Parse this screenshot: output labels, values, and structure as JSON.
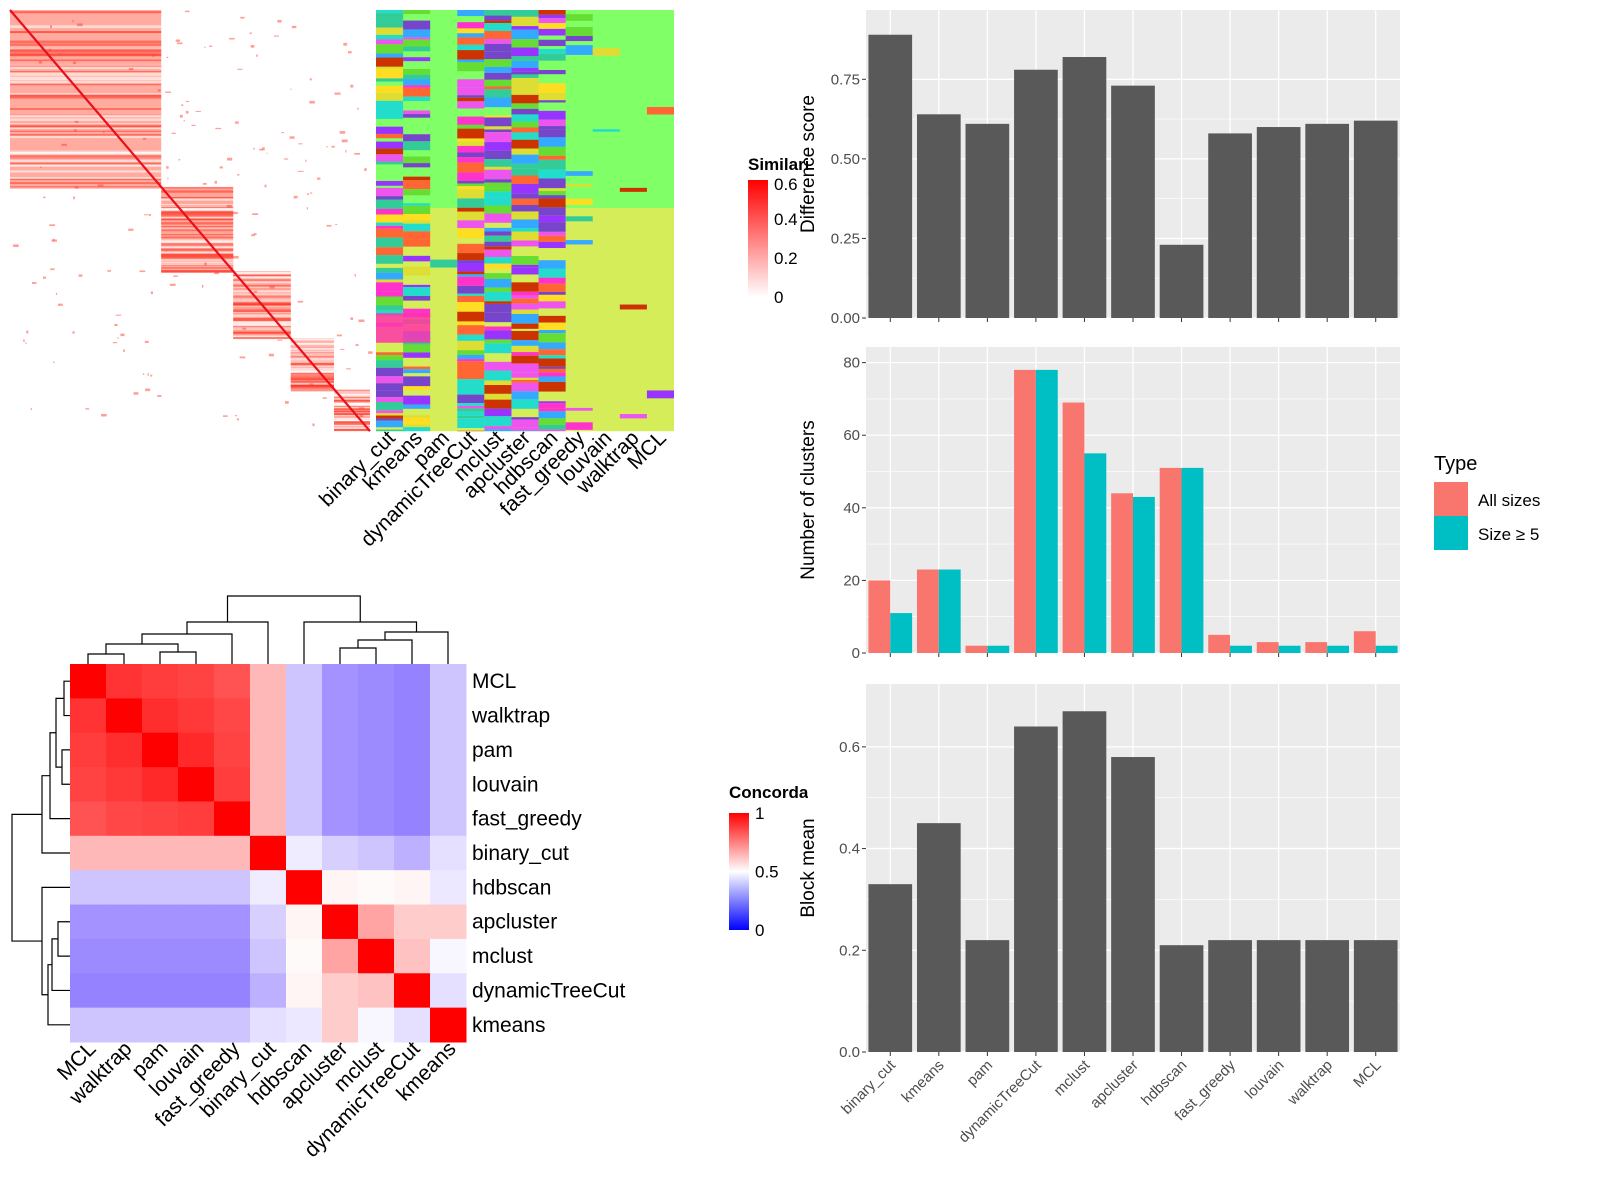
{
  "chart_data": [
    {
      "type": "heatmap",
      "panel": "similarity-matrix",
      "legend": {
        "title": "Similarity",
        "ticks": [
          "0",
          "0.2",
          "0.4",
          "0.6"
        ]
      },
      "annotation_columns": [
        "binary_cut",
        "kmeans",
        "pam",
        "dynamicTreeCut",
        "mclust",
        "apcluster",
        "hdbscan",
        "fast_greedy",
        "louvain",
        "walktrap",
        "MCL"
      ]
    },
    {
      "type": "heatmap",
      "panel": "concordance-matrix",
      "legend": {
        "title": "Concordance",
        "ticks": [
          "1",
          "0.5",
          "0"
        ]
      },
      "row_labels": [
        "MCL",
        "walktrap",
        "pam",
        "louvain",
        "fast_greedy",
        "binary_cut",
        "hdbscan",
        "apcluster",
        "mclust",
        "dynamicTreeCut",
        "kmeans"
      ],
      "col_labels": [
        "MCL",
        "walktrap",
        "pam",
        "louvain",
        "fast_greedy",
        "binary_cut",
        "hdbscan",
        "apcluster",
        "mclust",
        "dynamicTreeCut",
        "kmeans"
      ],
      "values": [
        [
          1.0,
          0.9,
          0.88,
          0.87,
          0.84,
          0.64,
          0.35,
          0.22,
          0.2,
          0.18,
          0.35
        ],
        [
          0.9,
          1.0,
          0.91,
          0.89,
          0.86,
          0.64,
          0.35,
          0.22,
          0.2,
          0.18,
          0.35
        ],
        [
          0.88,
          0.91,
          1.0,
          0.92,
          0.87,
          0.64,
          0.35,
          0.22,
          0.2,
          0.18,
          0.35
        ],
        [
          0.87,
          0.89,
          0.92,
          1.0,
          0.88,
          0.64,
          0.35,
          0.22,
          0.2,
          0.18,
          0.35
        ],
        [
          0.84,
          0.86,
          0.87,
          0.88,
          1.0,
          0.64,
          0.35,
          0.22,
          0.2,
          0.18,
          0.35
        ],
        [
          0.64,
          0.64,
          0.64,
          0.64,
          0.64,
          1.0,
          0.45,
          0.38,
          0.35,
          0.3,
          0.42
        ],
        [
          0.35,
          0.35,
          0.35,
          0.35,
          0.35,
          0.45,
          1.0,
          0.52,
          0.51,
          0.52,
          0.44
        ],
        [
          0.22,
          0.22,
          0.22,
          0.22,
          0.22,
          0.38,
          0.52,
          1.0,
          0.68,
          0.6,
          0.6
        ],
        [
          0.2,
          0.2,
          0.2,
          0.2,
          0.2,
          0.35,
          0.51,
          0.68,
          1.0,
          0.62,
          0.48
        ],
        [
          0.18,
          0.18,
          0.18,
          0.18,
          0.18,
          0.3,
          0.52,
          0.6,
          0.62,
          1.0,
          0.42
        ],
        [
          0.35,
          0.35,
          0.35,
          0.35,
          0.35,
          0.42,
          0.44,
          0.6,
          0.48,
          0.42,
          1.0
        ]
      ]
    },
    {
      "type": "bar",
      "panel": "difference-score",
      "categories": [
        "binary_cut",
        "kmeans",
        "pam",
        "dynamicTreeCut",
        "mclust",
        "apcluster",
        "hdbscan",
        "fast_greedy",
        "louvain",
        "walktrap",
        "MCL"
      ],
      "values": [
        0.89,
        0.64,
        0.61,
        0.78,
        0.82,
        0.73,
        0.23,
        0.58,
        0.6,
        0.61,
        0.62
      ],
      "ylabel": "Difference score",
      "ylim": [
        0,
        0.93
      ],
      "yticks": [
        "0.00",
        "0.25",
        "0.50",
        "0.75"
      ]
    },
    {
      "type": "bar",
      "panel": "number-of-clusters",
      "categories": [
        "binary_cut",
        "kmeans",
        "pam",
        "dynamicTreeCut",
        "mclust",
        "apcluster",
        "hdbscan",
        "fast_greedy",
        "louvain",
        "walktrap",
        "MCL"
      ],
      "series": [
        {
          "name": "All sizes",
          "values": [
            20,
            23,
            2,
            78,
            69,
            44,
            51,
            5,
            3,
            3,
            6
          ]
        },
        {
          "name": "Size ≥ 5",
          "values": [
            11,
            23,
            2,
            78,
            55,
            43,
            51,
            2,
            2,
            2,
            2
          ]
        }
      ],
      "ylabel": "Number of clusters",
      "ylim": [
        0,
        81
      ],
      "yticks": [
        "0",
        "20",
        "40",
        "60",
        "80"
      ],
      "legend": {
        "title": "Type",
        "position": "right"
      }
    },
    {
      "type": "bar",
      "panel": "block-mean",
      "categories": [
        "binary_cut",
        "kmeans",
        "pam",
        "dynamicTreeCut",
        "mclust",
        "apcluster",
        "hdbscan",
        "fast_greedy",
        "louvain",
        "walktrap",
        "MCL"
      ],
      "values": [
        0.33,
        0.45,
        0.22,
        0.64,
        0.67,
        0.58,
        0.21,
        0.22,
        0.22,
        0.22,
        0.22
      ],
      "ylabel": "Block mean",
      "ylim": [
        0,
        0.7
      ],
      "yticks": [
        "0.0",
        "0.2",
        "0.4",
        "0.6"
      ]
    }
  ],
  "colors": {
    "bar_gray": "#595959",
    "panel_bg": "#ebebeb",
    "all_sizes": "#f8766d",
    "size_ge_5": "#00bfc4",
    "heat_high": "#ff0000",
    "heat_mid": "#ffffff",
    "heat_low": "#0000ff",
    "anno_green_a": "#80ff66",
    "anno_green_b": "#d4ed59"
  }
}
